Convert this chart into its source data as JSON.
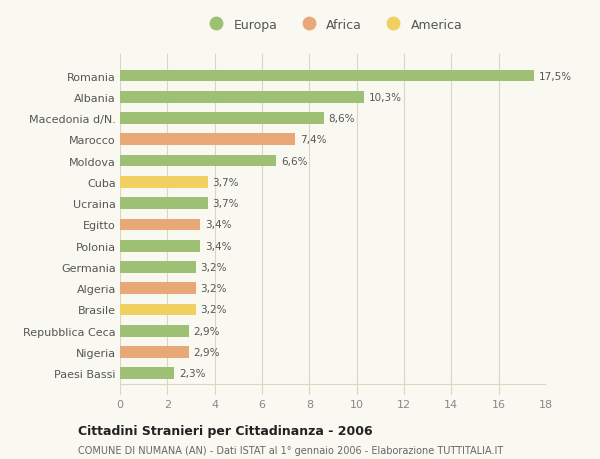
{
  "categories": [
    "Paesi Bassi",
    "Nigeria",
    "Repubblica Ceca",
    "Brasile",
    "Algeria",
    "Germania",
    "Polonia",
    "Egitto",
    "Ucraina",
    "Cuba",
    "Moldova",
    "Marocco",
    "Macedonia d/N.",
    "Albania",
    "Romania"
  ],
  "values": [
    2.3,
    2.9,
    2.9,
    3.2,
    3.2,
    3.2,
    3.4,
    3.4,
    3.7,
    3.7,
    6.6,
    7.4,
    8.6,
    10.3,
    17.5
  ],
  "labels": [
    "2,3%",
    "2,9%",
    "2,9%",
    "3,2%",
    "3,2%",
    "3,2%",
    "3,4%",
    "3,4%",
    "3,7%",
    "3,7%",
    "6,6%",
    "7,4%",
    "8,6%",
    "10,3%",
    "17,5%"
  ],
  "colors": [
    "#9dc074",
    "#e8a878",
    "#9dc074",
    "#f0d060",
    "#e8a878",
    "#9dc074",
    "#9dc074",
    "#e8a878",
    "#9dc074",
    "#f0d060",
    "#9dc074",
    "#e8a878",
    "#9dc074",
    "#9dc074",
    "#9dc074"
  ],
  "legend": [
    {
      "label": "Europa",
      "color": "#9dc074"
    },
    {
      "label": "Africa",
      "color": "#e8a878"
    },
    {
      "label": "America",
      "color": "#f0d060"
    }
  ],
  "title": "Cittadini Stranieri per Cittadinanza - 2006",
  "subtitle": "COMUNE DI NUMANA (AN) - Dati ISTAT al 1° gennaio 2006 - Elaborazione TUTTITALIA.IT",
  "xlim": [
    0,
    18
  ],
  "xticks": [
    0,
    2,
    4,
    6,
    8,
    10,
    12,
    14,
    16,
    18
  ],
  "background_color": "#f9f9f2",
  "grid_color": "#d8d8c0",
  "bar_height": 0.55
}
